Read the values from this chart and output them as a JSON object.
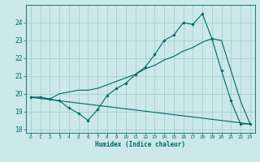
{
  "xlabel": "Humidex (Indice chaleur)",
  "bg_color": "#cce8e8",
  "grid_color": "#99cccc",
  "line_color": "#006666",
  "xlim": [
    -0.5,
    23.5
  ],
  "ylim": [
    17.8,
    25.0
  ],
  "yticks": [
    18,
    19,
    20,
    21,
    22,
    23,
    24
  ],
  "xticks": [
    0,
    1,
    2,
    3,
    4,
    5,
    6,
    7,
    8,
    9,
    10,
    11,
    12,
    13,
    14,
    15,
    16,
    17,
    18,
    19,
    20,
    21,
    22,
    23
  ],
  "series1_x": [
    0,
    1,
    2,
    3,
    4,
    5,
    6,
    7,
    8,
    9,
    10,
    11,
    12,
    13,
    14,
    15,
    16,
    17,
    18,
    19,
    20,
    21,
    22,
    23
  ],
  "series1_y": [
    19.8,
    19.8,
    19.7,
    19.6,
    19.2,
    18.9,
    18.5,
    19.1,
    19.9,
    20.3,
    20.6,
    21.1,
    21.5,
    22.2,
    23.0,
    23.3,
    24.0,
    23.9,
    24.5,
    23.1,
    21.3,
    19.6,
    18.3,
    18.3
  ],
  "series2_x": [
    0,
    23
  ],
  "series2_y": [
    19.8,
    18.3
  ],
  "series3_x": [
    0,
    1,
    2,
    3,
    4,
    5,
    6,
    7,
    8,
    9,
    10,
    11,
    12,
    13,
    14,
    15,
    16,
    17,
    18,
    19,
    20,
    21,
    22,
    23
  ],
  "series3_y": [
    19.8,
    19.8,
    19.7,
    20.0,
    20.1,
    20.2,
    20.2,
    20.3,
    20.5,
    20.7,
    20.9,
    21.1,
    21.4,
    21.6,
    21.9,
    22.1,
    22.4,
    22.6,
    22.9,
    23.1,
    23.0,
    21.3,
    19.6,
    18.3
  ]
}
